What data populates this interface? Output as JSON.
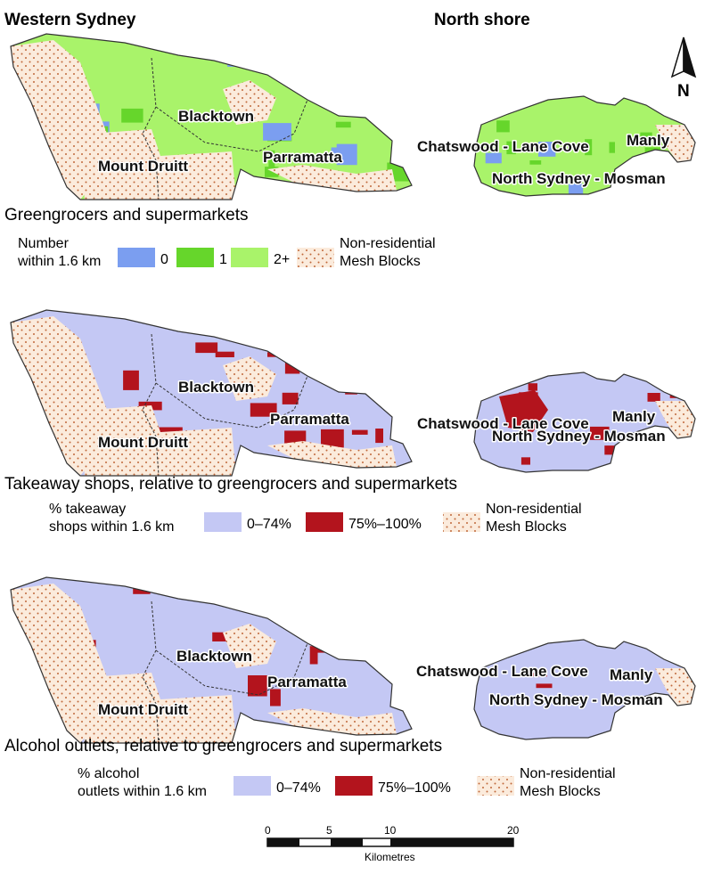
{
  "regions": {
    "west": "Western Sydney",
    "north": "North shore"
  },
  "compass": {
    "label": "N"
  },
  "places": {
    "blacktown": "Blacktown",
    "mount_druitt": "Mount Druitt",
    "parramatta": "Parramatta",
    "chatswood": "Chatswood - Lane Cove",
    "manly": "Manly",
    "north_sydney": "North Sydney - Mosman"
  },
  "colors": {
    "zero": "#7b9ef0",
    "one": "#66d62b",
    "twoplus": "#a9f36a",
    "low": "#c4c8f4",
    "high": "#b3141d",
    "nonres_bg": "#fbebdc",
    "nonres_dot": "#c0683b"
  },
  "panels": [
    {
      "title": "Greengrocers and supermarkets",
      "legend": {
        "label_line1": "Number",
        "label_line2": "within 1.6 km",
        "items": [
          "0",
          "1",
          "2+"
        ],
        "nonres_line1": "Non-residential",
        "nonres_line2": "Mesh Blocks"
      }
    },
    {
      "title": "Takeaway shops, relative to greengrocers and supermarkets",
      "legend": {
        "label_line1": "% takeaway",
        "label_line2": "shops within 1.6 km",
        "items": [
          "0–74%",
          "75%–100%"
        ],
        "nonres_line1": "Non-residential",
        "nonres_line2": "Mesh Blocks"
      }
    },
    {
      "title": "Alcohol outlets, relative to greengrocers and supermarkets",
      "legend": {
        "label_line1": "% alcohol",
        "label_line2": "outlets within 1.6 km",
        "items": [
          "0–74%",
          "75%–100%"
        ],
        "nonres_line1": "Non-residential",
        "nonres_line2": "Mesh Blocks"
      }
    }
  ],
  "scale_bar": {
    "ticks": [
      "0",
      "5",
      "10",
      "20"
    ],
    "unit": "Kilometres"
  }
}
